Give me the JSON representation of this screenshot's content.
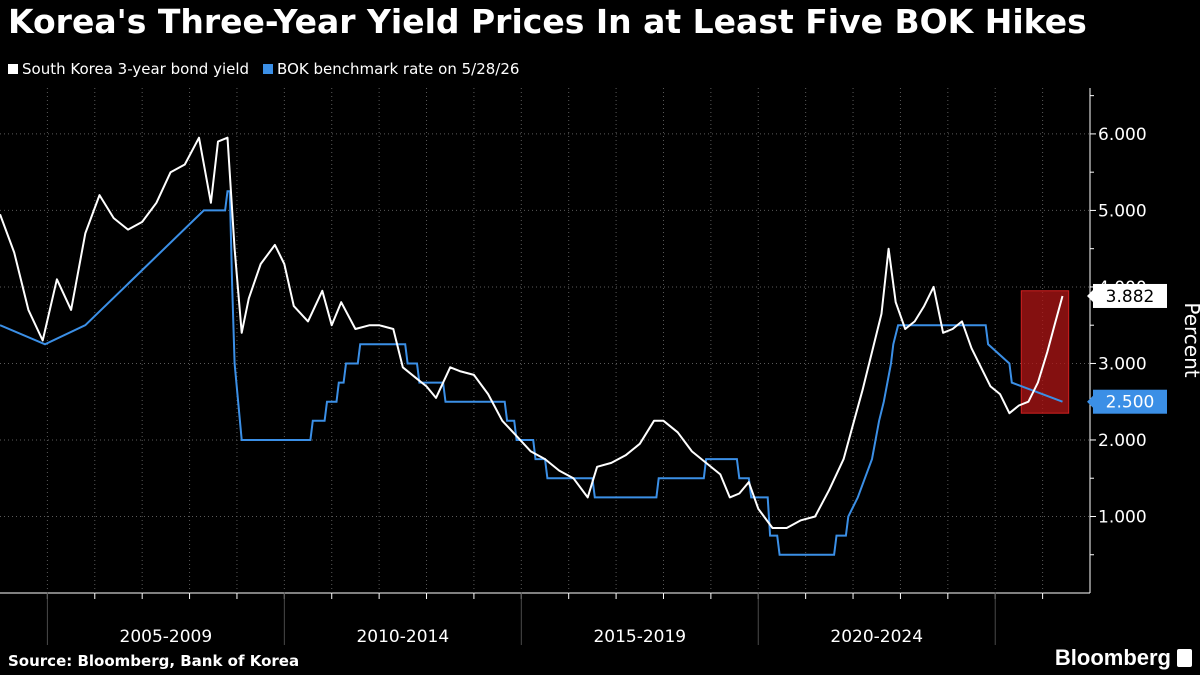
{
  "title": "Korea's Three-Year Yield Prices In at Least Five BOK Hikes",
  "legend": [
    {
      "label": "South Korea 3-year bond yield",
      "color": "#ffffff"
    },
    {
      "label": "BOK benchmark rate on 5/28/26",
      "color": "#3b8fe6"
    }
  ],
  "footer": {
    "source": "Source: Bloomberg, Bank of Korea",
    "brand": "Bloomberg"
  },
  "chart_data": {
    "type": "line",
    "title": "Korea's Three-Year Yield Prices In at Least Five BOK Hikes",
    "xlabel": "",
    "ylabel": "Percent",
    "xlim": [
      2004.0,
      2027.0
    ],
    "ylim": [
      0,
      6.6
    ],
    "yticks": [
      1.0,
      2.0,
      3.0,
      4.0,
      5.0,
      6.0
    ],
    "ytick_labels": [
      "1.000",
      "2.000",
      "3.000",
      "4.000",
      "5.000",
      "6.000"
    ],
    "x_group_labels": [
      {
        "label": "2005-2009",
        "range": [
          2005,
          2010
        ]
      },
      {
        "label": "2010-2014",
        "range": [
          2010,
          2015
        ]
      },
      {
        "label": "2015-2019",
        "range": [
          2015,
          2020
        ]
      },
      {
        "label": "2020-2024",
        "range": [
          2020,
          2025
        ]
      }
    ],
    "grid": true,
    "legend_position": "top-left",
    "series": [
      {
        "name": "South Korea 3-year bond yield",
        "color": "#ffffff",
        "x": [
          2004.0,
          2004.3,
          2004.6,
          2004.9,
          2005.2,
          2005.5,
          2005.8,
          2006.1,
          2006.4,
          2006.7,
          2007.0,
          2007.3,
          2007.6,
          2007.9,
          2008.2,
          2008.45,
          2008.6,
          2008.8,
          2008.95,
          2009.1,
          2009.25,
          2009.5,
          2009.8,
          2010.0,
          2010.2,
          2010.5,
          2010.8,
          2011.0,
          2011.2,
          2011.5,
          2011.8,
          2012.0,
          2012.3,
          2012.5,
          2012.8,
          2013.0,
          2013.2,
          2013.5,
          2013.7,
          2014.0,
          2014.3,
          2014.6,
          2014.9,
          2015.2,
          2015.5,
          2015.8,
          2016.1,
          2016.4,
          2016.6,
          2016.9,
          2017.2,
          2017.5,
          2017.8,
          2018.0,
          2018.3,
          2018.6,
          2018.9,
          2019.2,
          2019.4,
          2019.6,
          2019.8,
          2020.0,
          2020.3,
          2020.6,
          2020.9,
          2021.2,
          2021.5,
          2021.8,
          2022.0,
          2022.2,
          2022.4,
          2022.6,
          2022.75,
          2022.9,
          2023.1,
          2023.3,
          2023.5,
          2023.7,
          2023.9,
          2024.1,
          2024.3,
          2024.5,
          2024.7,
          2024.9,
          2025.1,
          2025.3,
          2025.5,
          2025.7,
          2025.9,
          2026.1,
          2026.25,
          2026.42
        ],
        "y": [
          4.95,
          4.45,
          3.7,
          3.3,
          4.1,
          3.7,
          4.7,
          5.2,
          4.9,
          4.75,
          4.85,
          5.1,
          5.5,
          5.6,
          5.95,
          5.1,
          5.9,
          5.95,
          4.5,
          3.4,
          3.85,
          4.3,
          4.55,
          4.3,
          3.75,
          3.55,
          3.95,
          3.5,
          3.8,
          3.45,
          3.5,
          3.5,
          3.45,
          2.95,
          2.8,
          2.7,
          2.55,
          2.95,
          2.9,
          2.85,
          2.6,
          2.25,
          2.05,
          1.85,
          1.75,
          1.6,
          1.5,
          1.25,
          1.65,
          1.7,
          1.8,
          1.95,
          2.25,
          2.25,
          2.1,
          1.85,
          1.7,
          1.55,
          1.25,
          1.3,
          1.45,
          1.1,
          0.85,
          0.85,
          0.95,
          1.0,
          1.35,
          1.75,
          2.2,
          2.65,
          3.15,
          3.65,
          4.5,
          3.8,
          3.45,
          3.55,
          3.75,
          4.0,
          3.4,
          3.45,
          3.55,
          3.2,
          2.95,
          2.7,
          2.6,
          2.35,
          2.45,
          2.5,
          2.75,
          3.15,
          3.5,
          3.882
        ]
      },
      {
        "name": "BOK benchmark rate on 5/28/26",
        "color": "#3b8fe6",
        "x": [
          2004.0,
          2004.95,
          2005.8,
          2008.3,
          2008.75,
          2008.8,
          2008.85,
          2008.9,
          2008.95,
          2009.1,
          2010.55,
          2010.6,
          2010.85,
          2010.9,
          2011.1,
          2011.15,
          2011.25,
          2011.3,
          2011.55,
          2011.6,
          2012.55,
          2012.6,
          2012.8,
          2012.85,
          2013.35,
          2013.4,
          2014.65,
          2014.7,
          2014.85,
          2014.9,
          2015.25,
          2015.3,
          2015.5,
          2015.55,
          2016.5,
          2016.55,
          2017.85,
          2017.9,
          2018.85,
          2018.9,
          2019.55,
          2019.6,
          2019.8,
          2019.85,
          2020.2,
          2020.25,
          2020.4,
          2020.45,
          2021.6,
          2021.65,
          2021.85,
          2021.9,
          2022.1,
          2022.25,
          2022.4,
          2022.55,
          2022.65,
          2022.8,
          2022.85,
          2022.95,
          2024.8,
          2024.85,
          2025.3,
          2025.35,
          2026.42
        ],
        "y": [
          3.5,
          3.25,
          3.5,
          5.0,
          5.0,
          5.25,
          5.25,
          4.0,
          3.0,
          2.0,
          2.0,
          2.25,
          2.25,
          2.5,
          2.5,
          2.75,
          2.75,
          3.0,
          3.0,
          3.25,
          3.25,
          3.0,
          3.0,
          2.75,
          2.75,
          2.5,
          2.5,
          2.25,
          2.25,
          2.0,
          2.0,
          1.75,
          1.75,
          1.5,
          1.5,
          1.25,
          1.25,
          1.5,
          1.5,
          1.75,
          1.75,
          1.5,
          1.5,
          1.25,
          1.25,
          0.75,
          0.75,
          0.5,
          0.5,
          0.75,
          0.75,
          1.0,
          1.25,
          1.5,
          1.75,
          2.25,
          2.5,
          3.0,
          3.25,
          3.5,
          3.5,
          3.25,
          3.0,
          2.75,
          2.5
        ]
      }
    ],
    "value_labels": [
      {
        "series": "South Korea 3-year bond yield",
        "text": "3.882",
        "value": 3.882
      },
      {
        "series": "BOK benchmark rate on 5/28/26",
        "text": "2.500",
        "value": 2.5
      }
    ],
    "highlight": {
      "color": "#b01515",
      "x_range": [
        2025.55,
        2026.55
      ],
      "y_range": [
        2.35,
        3.95
      ]
    }
  }
}
